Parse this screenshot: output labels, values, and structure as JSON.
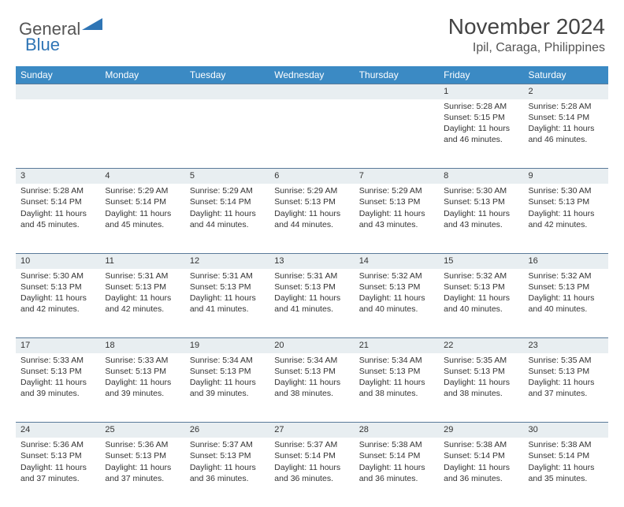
{
  "logo": {
    "text1": "General",
    "text2": "Blue",
    "icon_color": "#2f75b5"
  },
  "title": "November 2024",
  "location": "Ipil, Caraga, Philippines",
  "colors": {
    "header_bg": "#3b8ac4",
    "header_text": "#ffffff",
    "daynum_bg": "#e8eef1",
    "daynum_border": "#5a7a99",
    "body_text": "#333333",
    "page_bg": "#ffffff"
  },
  "day_headers": [
    "Sunday",
    "Monday",
    "Tuesday",
    "Wednesday",
    "Thursday",
    "Friday",
    "Saturday"
  ],
  "weeks": [
    [
      null,
      null,
      null,
      null,
      null,
      {
        "n": "1",
        "sr": "5:28 AM",
        "ss": "5:15 PM",
        "dl": "11 hours and 46 minutes."
      },
      {
        "n": "2",
        "sr": "5:28 AM",
        "ss": "5:14 PM",
        "dl": "11 hours and 46 minutes."
      }
    ],
    [
      {
        "n": "3",
        "sr": "5:28 AM",
        "ss": "5:14 PM",
        "dl": "11 hours and 45 minutes."
      },
      {
        "n": "4",
        "sr": "5:29 AM",
        "ss": "5:14 PM",
        "dl": "11 hours and 45 minutes."
      },
      {
        "n": "5",
        "sr": "5:29 AM",
        "ss": "5:14 PM",
        "dl": "11 hours and 44 minutes."
      },
      {
        "n": "6",
        "sr": "5:29 AM",
        "ss": "5:13 PM",
        "dl": "11 hours and 44 minutes."
      },
      {
        "n": "7",
        "sr": "5:29 AM",
        "ss": "5:13 PM",
        "dl": "11 hours and 43 minutes."
      },
      {
        "n": "8",
        "sr": "5:30 AM",
        "ss": "5:13 PM",
        "dl": "11 hours and 43 minutes."
      },
      {
        "n": "9",
        "sr": "5:30 AM",
        "ss": "5:13 PM",
        "dl": "11 hours and 42 minutes."
      }
    ],
    [
      {
        "n": "10",
        "sr": "5:30 AM",
        "ss": "5:13 PM",
        "dl": "11 hours and 42 minutes."
      },
      {
        "n": "11",
        "sr": "5:31 AM",
        "ss": "5:13 PM",
        "dl": "11 hours and 42 minutes."
      },
      {
        "n": "12",
        "sr": "5:31 AM",
        "ss": "5:13 PM",
        "dl": "11 hours and 41 minutes."
      },
      {
        "n": "13",
        "sr": "5:31 AM",
        "ss": "5:13 PM",
        "dl": "11 hours and 41 minutes."
      },
      {
        "n": "14",
        "sr": "5:32 AM",
        "ss": "5:13 PM",
        "dl": "11 hours and 40 minutes."
      },
      {
        "n": "15",
        "sr": "5:32 AM",
        "ss": "5:13 PM",
        "dl": "11 hours and 40 minutes."
      },
      {
        "n": "16",
        "sr": "5:32 AM",
        "ss": "5:13 PM",
        "dl": "11 hours and 40 minutes."
      }
    ],
    [
      {
        "n": "17",
        "sr": "5:33 AM",
        "ss": "5:13 PM",
        "dl": "11 hours and 39 minutes."
      },
      {
        "n": "18",
        "sr": "5:33 AM",
        "ss": "5:13 PM",
        "dl": "11 hours and 39 minutes."
      },
      {
        "n": "19",
        "sr": "5:34 AM",
        "ss": "5:13 PM",
        "dl": "11 hours and 39 minutes."
      },
      {
        "n": "20",
        "sr": "5:34 AM",
        "ss": "5:13 PM",
        "dl": "11 hours and 38 minutes."
      },
      {
        "n": "21",
        "sr": "5:34 AM",
        "ss": "5:13 PM",
        "dl": "11 hours and 38 minutes."
      },
      {
        "n": "22",
        "sr": "5:35 AM",
        "ss": "5:13 PM",
        "dl": "11 hours and 38 minutes."
      },
      {
        "n": "23",
        "sr": "5:35 AM",
        "ss": "5:13 PM",
        "dl": "11 hours and 37 minutes."
      }
    ],
    [
      {
        "n": "24",
        "sr": "5:36 AM",
        "ss": "5:13 PM",
        "dl": "11 hours and 37 minutes."
      },
      {
        "n": "25",
        "sr": "5:36 AM",
        "ss": "5:13 PM",
        "dl": "11 hours and 37 minutes."
      },
      {
        "n": "26",
        "sr": "5:37 AM",
        "ss": "5:13 PM",
        "dl": "11 hours and 36 minutes."
      },
      {
        "n": "27",
        "sr": "5:37 AM",
        "ss": "5:14 PM",
        "dl": "11 hours and 36 minutes."
      },
      {
        "n": "28",
        "sr": "5:38 AM",
        "ss": "5:14 PM",
        "dl": "11 hours and 36 minutes."
      },
      {
        "n": "29",
        "sr": "5:38 AM",
        "ss": "5:14 PM",
        "dl": "11 hours and 36 minutes."
      },
      {
        "n": "30",
        "sr": "5:38 AM",
        "ss": "5:14 PM",
        "dl": "11 hours and 35 minutes."
      }
    ]
  ],
  "labels": {
    "sunrise": "Sunrise: ",
    "sunset": "Sunset: ",
    "daylight": "Daylight: "
  }
}
